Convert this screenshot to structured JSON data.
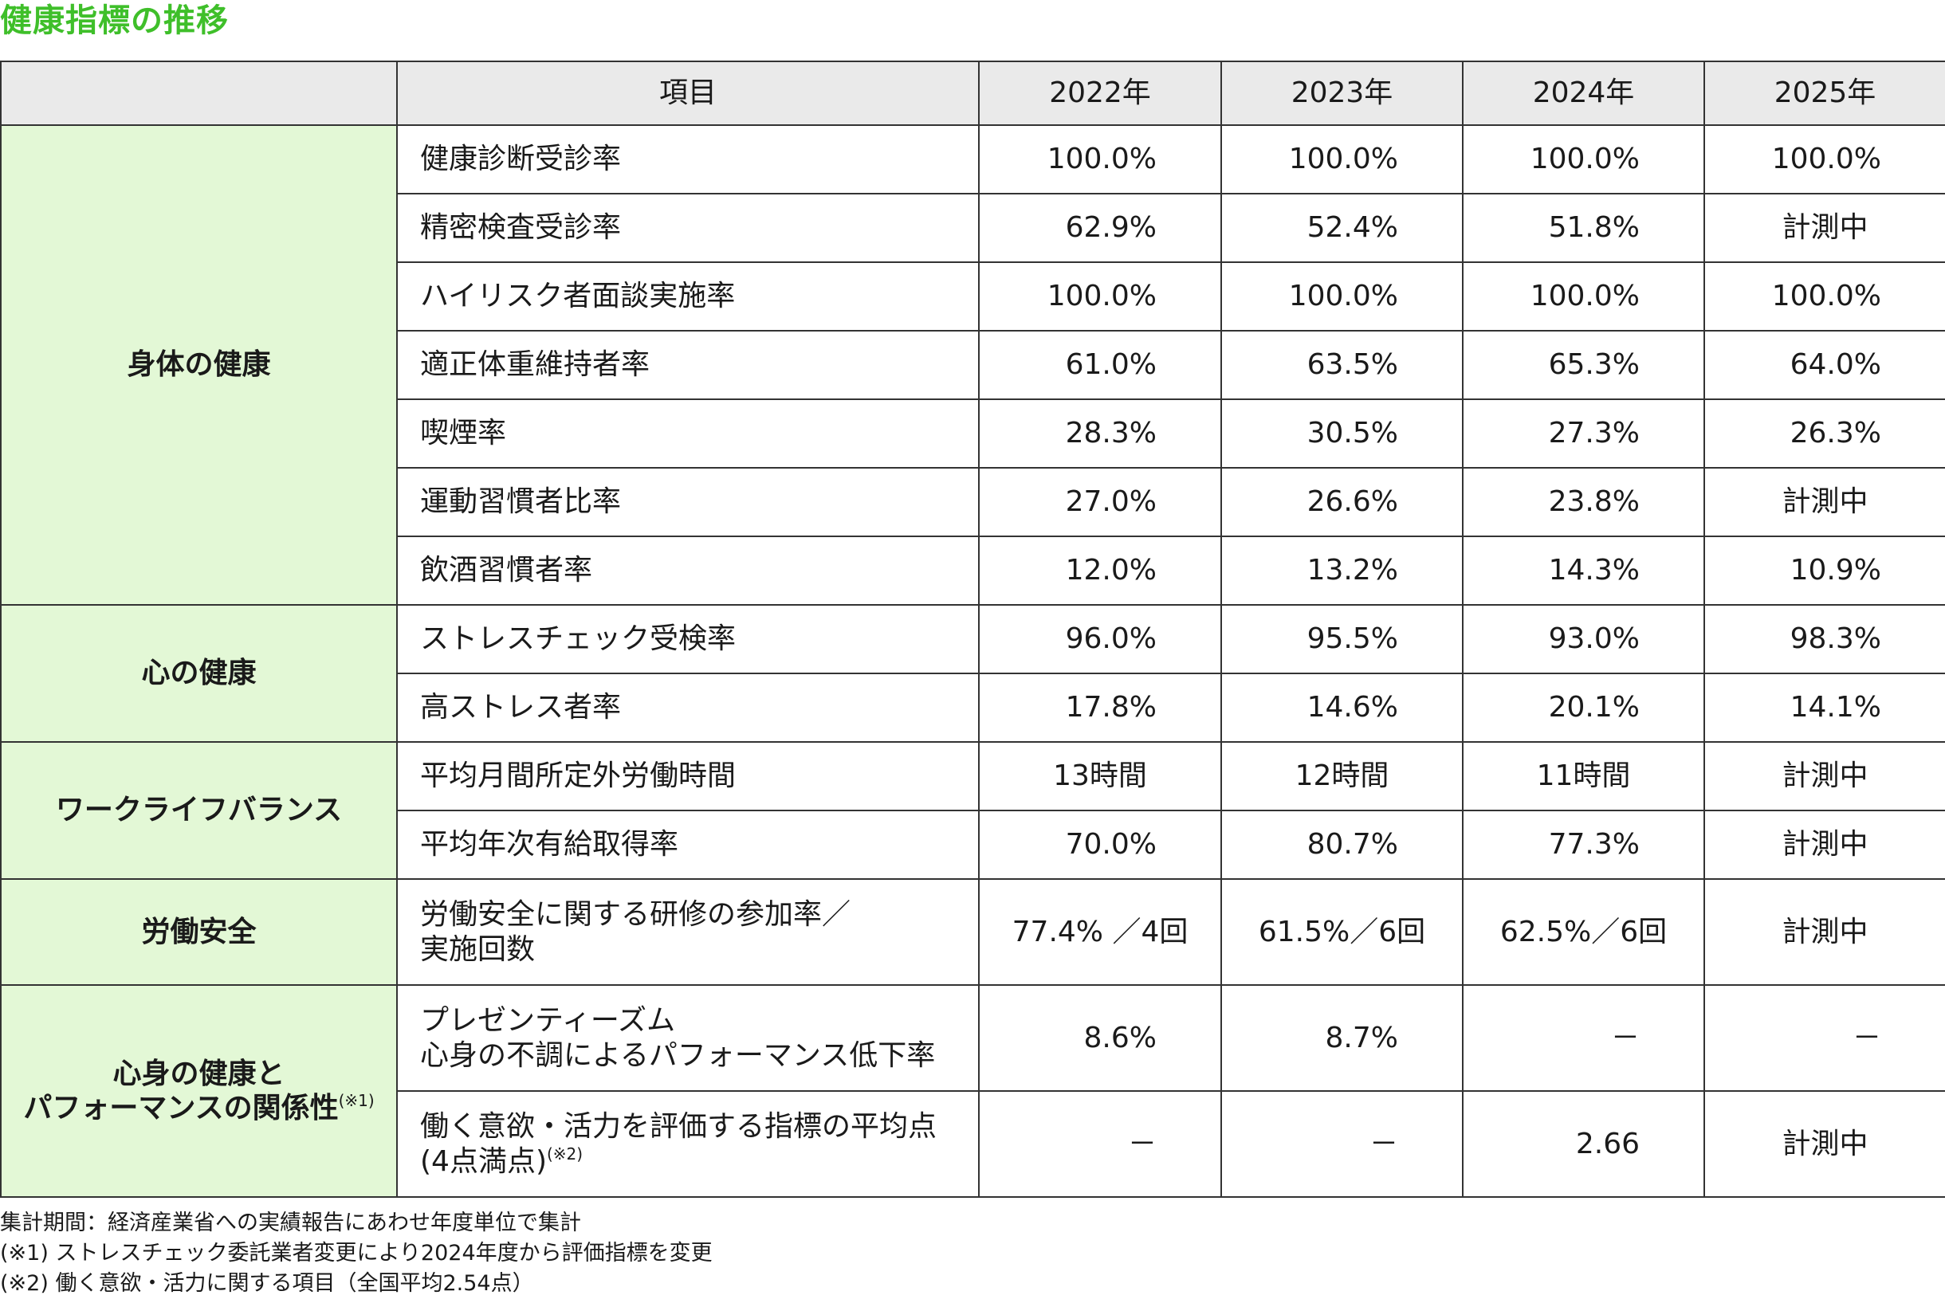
{
  "title": "健康指標の推移",
  "header": {
    "item": "項目",
    "years": [
      "2022年",
      "2023年",
      "2024年",
      "2025年"
    ]
  },
  "groups": [
    {
      "category": "身体の健康",
      "rows": [
        {
          "item": "健康診断受診率",
          "values": [
            "100.0%",
            "100.0%",
            "100.0%",
            "100.0%"
          ]
        },
        {
          "item": "精密検査受診率",
          "values": [
            "62.9%",
            "52.4%",
            "51.8%",
            "計測中"
          ]
        },
        {
          "item": "ハイリスク者面談実施率",
          "values": [
            "100.0%",
            "100.0%",
            "100.0%",
            "100.0%"
          ]
        },
        {
          "item": "適正体重維持者率",
          "values": [
            "61.0%",
            "63.5%",
            "65.3%",
            "64.0%"
          ]
        },
        {
          "item": "喫煙率",
          "values": [
            "28.3%",
            "30.5%",
            "27.3%",
            "26.3%"
          ]
        },
        {
          "item": "運動習慣者比率",
          "values": [
            "27.0%",
            "26.6%",
            "23.8%",
            "計測中"
          ]
        },
        {
          "item": "飲酒習慣者率",
          "values": [
            "12.0%",
            "13.2%",
            "14.3%",
            "10.9%"
          ]
        }
      ]
    },
    {
      "category": "心の健康",
      "rows": [
        {
          "item": "ストレスチェック受検率",
          "values": [
            "96.0%",
            "95.5%",
            "93.0%",
            "98.3%"
          ]
        },
        {
          "item": "高ストレス者率",
          "values": [
            "17.8%",
            "14.6%",
            "20.1%",
            "14.1%"
          ]
        }
      ]
    },
    {
      "category": "ワークライフバランス",
      "rows": [
        {
          "item": "平均月間所定外労働時間",
          "values": [
            "13時間",
            "12時間",
            "11時間",
            "計測中"
          ]
        },
        {
          "item": "平均年次有給取得率",
          "values": [
            "70.0%",
            "80.7%",
            "77.3%",
            "計測中"
          ]
        }
      ]
    },
    {
      "category": "労働安全",
      "rows": [
        {
          "item_line1": "労働安全に関する研修の参加率／",
          "item_line2": "実施回数",
          "values": [
            "77.4% ／4回",
            "61.5%／6回",
            "62.5%／6回",
            "計測中"
          ]
        }
      ]
    },
    {
      "category_line1": "心身の健康と",
      "category_line2": "パフォーマンスの関係性",
      "category_note": "(※1)",
      "rows": [
        {
          "item_line1": "プレゼンティーズム",
          "item_line2": "心身の不調によるパフォーマンス低下率",
          "values": [
            "8.6%",
            "8.7%",
            "－",
            "－"
          ]
        },
        {
          "item_line1": "働く意欲・活力を評価する指標の平均点",
          "item_line2": "(4点満点)",
          "item_note": "(※2)",
          "values": [
            "－",
            "－",
            "2.66",
            "計測中"
          ]
        }
      ]
    }
  ],
  "notes": [
    "集計期間：経済産業省への実績報告にあわせ年度単位で集計",
    "(※1) ストレスチェック委託業者変更により2024年度から評価指標を変更",
    "(※2) 働く意欲・活力に関する項目（全国平均2.54点）"
  ]
}
